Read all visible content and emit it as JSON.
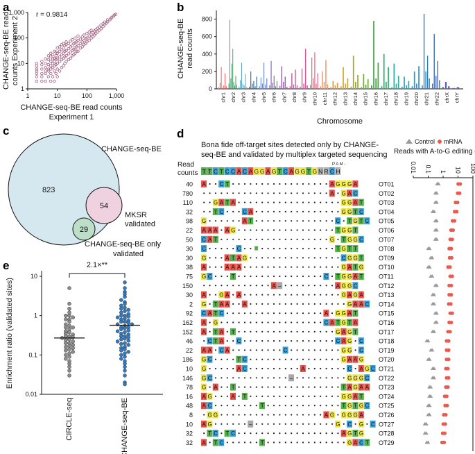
{
  "panel_labels": {
    "a": "a",
    "b": "b",
    "c": "c",
    "d": "d",
    "e": "e"
  },
  "chart_data": [
    {
      "id": "a",
      "type": "scatter",
      "scale": "log-log",
      "xlabel_line1": "CHANGE-seq-BE read counts",
      "xlabel_line2": "Experiment 1",
      "ylabel_line1": "CHANGE-seq-BE read",
      "ylabel_line2": "counts Experiment 2",
      "annotation": "r = 0.9814",
      "xlim": [
        1,
        1000
      ],
      "ylim": [
        1,
        1000
      ],
      "xticks": [
        "1",
        "10",
        "100",
        "1,000"
      ],
      "yticks": [
        "1",
        "10",
        "100",
        "1,000"
      ],
      "points": [
        [
          2,
          2
        ],
        [
          2,
          3
        ],
        [
          2,
          4
        ],
        [
          2,
          5
        ],
        [
          2,
          6
        ],
        [
          2,
          8
        ],
        [
          2,
          10
        ],
        [
          3,
          2
        ],
        [
          3,
          3
        ],
        [
          3,
          4
        ],
        [
          3,
          6
        ],
        [
          3,
          9
        ],
        [
          3,
          12
        ],
        [
          4,
          2
        ],
        [
          4,
          4
        ],
        [
          4,
          5
        ],
        [
          4,
          7
        ],
        [
          4,
          10
        ],
        [
          4,
          15
        ],
        [
          5,
          3
        ],
        [
          5,
          5
        ],
        [
          5,
          6
        ],
        [
          5,
          9
        ],
        [
          5,
          14
        ],
        [
          5,
          20
        ],
        [
          6,
          2
        ],
        [
          6,
          4
        ],
        [
          6,
          6
        ],
        [
          6,
          8
        ],
        [
          6,
          12
        ],
        [
          6,
          18
        ],
        [
          6,
          25
        ],
        [
          7,
          3
        ],
        [
          7,
          7
        ],
        [
          7,
          10
        ],
        [
          7,
          15
        ],
        [
          7,
          22
        ],
        [
          8,
          2
        ],
        [
          8,
          5
        ],
        [
          8,
          8
        ],
        [
          8,
          12
        ],
        [
          8,
          16
        ],
        [
          8,
          30
        ],
        [
          9,
          4
        ],
        [
          9,
          9
        ],
        [
          9,
          14
        ],
        [
          9,
          20
        ],
        [
          9,
          28
        ],
        [
          10,
          3
        ],
        [
          10,
          6
        ],
        [
          10,
          10
        ],
        [
          10,
          15
        ],
        [
          10,
          25
        ],
        [
          10,
          40
        ],
        [
          12,
          5
        ],
        [
          12,
          12
        ],
        [
          12,
          18
        ],
        [
          12,
          30
        ],
        [
          12,
          45
        ],
        [
          14,
          7
        ],
        [
          14,
          14
        ],
        [
          14,
          22
        ],
        [
          14,
          35
        ],
        [
          14,
          55
        ],
        [
          16,
          8
        ],
        [
          16,
          16
        ],
        [
          16,
          25
        ],
        [
          16,
          40
        ],
        [
          16,
          60
        ],
        [
          18,
          10
        ],
        [
          18,
          18
        ],
        [
          18,
          30
        ],
        [
          18,
          50
        ],
        [
          20,
          12
        ],
        [
          20,
          20
        ],
        [
          20,
          32
        ],
        [
          20,
          55
        ],
        [
          20,
          70
        ],
        [
          24,
          14
        ],
        [
          24,
          24
        ],
        [
          24,
          38
        ],
        [
          24,
          60
        ],
        [
          28,
          16
        ],
        [
          28,
          28
        ],
        [
          28,
          45
        ],
        [
          28,
          75
        ],
        [
          32,
          20
        ],
        [
          32,
          32
        ],
        [
          32,
          50
        ],
        [
          32,
          85
        ],
        [
          36,
          22
        ],
        [
          36,
          36
        ],
        [
          36,
          60
        ],
        [
          40,
          25
        ],
        [
          40,
          40
        ],
        [
          40,
          65
        ],
        [
          40,
          100
        ],
        [
          45,
          30
        ],
        [
          45,
          45
        ],
        [
          45,
          70
        ],
        [
          50,
          30
        ],
        [
          50,
          50
        ],
        [
          50,
          80
        ],
        [
          50,
          120
        ],
        [
          60,
          40
        ],
        [
          60,
          60
        ],
        [
          60,
          90
        ],
        [
          70,
          45
        ],
        [
          70,
          70
        ],
        [
          70,
          110
        ],
        [
          80,
          55
        ],
        [
          80,
          80
        ],
        [
          80,
          130
        ],
        [
          90,
          60
        ],
        [
          90,
          95
        ],
        [
          100,
          70
        ],
        [
          100,
          100
        ],
        [
          100,
          150
        ],
        [
          120,
          80
        ],
        [
          120,
          120
        ],
        [
          120,
          170
        ],
        [
          140,
          100
        ],
        [
          140,
          140
        ],
        [
          140,
          200
        ],
        [
          160,
          110
        ],
        [
          160,
          160
        ],
        [
          180,
          130
        ],
        [
          180,
          190
        ],
        [
          200,
          150
        ],
        [
          200,
          210
        ],
        [
          230,
          170
        ],
        [
          230,
          240
        ],
        [
          260,
          200
        ],
        [
          260,
          270
        ],
        [
          300,
          230
        ],
        [
          300,
          320
        ],
        [
          350,
          280
        ],
        [
          350,
          360
        ],
        [
          400,
          330
        ],
        [
          400,
          420
        ],
        [
          450,
          380
        ],
        [
          500,
          430
        ],
        [
          500,
          520
        ],
        [
          600,
          520
        ],
        [
          650,
          600
        ],
        [
          700,
          650
        ],
        [
          800,
          720
        ],
        [
          850,
          800
        ],
        [
          950,
          850
        ]
      ]
    },
    {
      "id": "b",
      "type": "bar",
      "ylabel_line1": "CHANGE-seq-BE",
      "ylabel_line2": "read counts",
      "xlabel": "Chromosome",
      "ylim": [
        0,
        900
      ],
      "yticks": [
        "0",
        "200",
        "400",
        "600",
        "800"
      ],
      "categories": [
        "chr1",
        "chr2",
        "chr3",
        "chr4",
        "chr5",
        "chr6",
        "chr7",
        "chr8",
        "chr9",
        "chr10",
        "chr11",
        "chr12",
        "chr13",
        "chr14",
        "chr15",
        "chr16",
        "chr17",
        "chr18",
        "chr19",
        "chr20",
        "chr21",
        "chr22",
        "chrX",
        "chrY"
      ],
      "colors": [
        "#f05a5a",
        "#2e9d57",
        "#4f9fc4",
        "#2c6fb0",
        "#6c86c4",
        "#7e63b3",
        "#9d5eb0",
        "#c456a8",
        "#e0509a",
        "#ef5a7a",
        "#f08f5a",
        "#e59a3a",
        "#d9a92e",
        "#a0aa2e",
        "#6fab3a",
        "#3da83f",
        "#2fb06e",
        "#26b1a0",
        "#24a9bf",
        "#2a96d2",
        "#2381c7",
        "#3c6cc0",
        "#5a62b8",
        "#7b5cb3"
      ],
      "bars": [
        [
          20,
          70,
          250,
          15,
          40,
          180,
          30
        ],
        [
          60,
          790,
          120,
          290,
          460,
          80,
          35,
          150,
          50
        ],
        [
          25,
          100,
          300,
          60,
          40,
          170,
          20
        ],
        [
          25,
          200,
          60,
          90,
          30,
          140
        ],
        [
          30,
          130,
          60,
          300,
          50,
          120
        ],
        [
          40,
          320,
          70,
          150,
          30,
          90
        ],
        [
          35,
          260,
          80,
          140,
          25
        ],
        [
          30,
          180,
          50,
          220,
          40
        ],
        [
          25,
          230,
          60,
          460,
          40
        ],
        [
          45,
          360,
          120,
          420,
          60,
          180
        ],
        [
          30,
          200,
          80,
          330,
          50
        ],
        [
          20,
          90,
          40,
          70
        ],
        [
          30,
          250,
          60,
          120
        ],
        [
          25,
          380,
          80,
          160
        ],
        [
          20,
          170,
          50,
          110
        ],
        [
          40,
          780,
          120,
          300
        ],
        [
          30,
          400,
          80,
          250
        ],
        [
          20,
          290,
          60,
          150
        ],
        [
          25,
          140,
          40,
          90
        ],
        [
          30,
          200,
          60,
          260
        ],
        [
          40,
          860,
          200,
          380,
          120
        ],
        [
          60,
          630,
          150,
          320,
          100
        ],
        [
          20,
          80,
          30
        ],
        [
          10,
          20
        ]
      ]
    },
    {
      "id": "c",
      "type": "venn",
      "sets": [
        {
          "label": "CHANGE-seq-BE",
          "count": "823"
        },
        {
          "label_line1": "MKSR",
          "label_line2": "validated",
          "count": "54"
        },
        {
          "label_line1": "CHANGE-seq-BE only",
          "label_line2": "validated",
          "count": "29"
        }
      ]
    },
    {
      "id": "d",
      "type": "table",
      "title_line1": "Bona fide off-target sites detected only by CHANGE-",
      "title_line2": "seq-BE and validated by multiplex targeted sequencing",
      "header_line1": "Read",
      "header_line2": "counts",
      "reference": "TTCTCCACAGGAGTCAGGTGNRCH",
      "pam_label": "P A M -",
      "rows": [
        {
          "count": "40",
          "id": "OT01",
          "seq": "A..CT.................AGGGA"
        },
        {
          "count": "780",
          "id": "OT02",
          "seq": "......................A.GAC"
        },
        {
          "count": "110",
          "id": "OT03",
          "seq": "..GATA..................GGAT"
        },
        {
          "count": "32",
          "id": "OT04",
          "seq": "..TC...CA...............GGTC"
        },
        {
          "count": "98",
          "id": "OT05",
          "seq": "G......AT..............C.TGTC"
        },
        {
          "count": "22",
          "id": "OT06",
          "seq": "AAA.AG.................TGGT"
        },
        {
          "count": "50",
          "id": "OT07",
          "seq": "CAT...................G.TGGC"
        },
        {
          "count": "30",
          "id": "OT08",
          "seq": "C.....C..g.............TGTT"
        },
        {
          "count": "30",
          "id": "OT09",
          "seq": "G...ATAG................CGGT"
        },
        {
          "count": "38",
          "id": "OT10",
          "seq": "A...AAA.................GATG"
        },
        {
          "count": "75",
          "id": "OT11",
          "seq": "GC...T...............C.TGGAT"
        },
        {
          "count": "150",
          "id": "OT12",
          "seq": "............A-.........AGGC"
        },
        {
          "count": "30",
          "id": "OT13",
          "seq": "A..GA.A.................GAGA"
        },
        {
          "count": "2",
          "id": "OT14",
          "seq": "G.TAA..A.................GAAC"
        },
        {
          "count": "92",
          "id": "OT15",
          "seq": "CATC.................A.GGAT"
        },
        {
          "count": "162",
          "id": "OT16",
          "seq": "A.G..................CATGTA"
        },
        {
          "count": "152",
          "id": "OT17",
          "seq": "A.TA.T.................GAGT"
        },
        {
          "count": "46",
          "id": "OT18",
          "seq": ".CTA..C................CAG.C"
        },
        {
          "count": "22",
          "id": "OT19",
          "seq": "AA.CA.........C.........GG.C"
        },
        {
          "count": "186",
          "id": "OT20",
          "seq": "GC....TC................GAAG"
        },
        {
          "count": "10",
          "id": "OT21",
          "seq": "G.....AC.........A.......C.AGC"
        },
        {
          "count": "146",
          "id": "OT22",
          "seq": "GC.............-.........GGGC"
        },
        {
          "count": "78",
          "id": "OT23",
          "seq": "G.A..T..................TAGAA"
        },
        {
          "count": "16",
          "id": "OT24",
          "seq": "AG...A.T................GGAT"
        },
        {
          "count": "48",
          "id": "OT25",
          "seq": "AC........T.............TGTGC"
        },
        {
          "count": "8",
          "id": "OT26",
          "seq": ".GG..................AG.GGGA"
        },
        {
          "count": "10",
          "id": "OT27",
          "seq": "AG......-..............G.C.G.C"
        },
        {
          "count": "32",
          "id": "OT28",
          "seq": ".TC.TC..................AGTG"
        },
        {
          "count": "32",
          "id": "OT29",
          "seq": "A.TC......T..............GACT"
        }
      ],
      "legend": {
        "control": "Control",
        "mrna": "mRNA"
      },
      "xlabel": "Reads with A-to-G editing (%)",
      "xticks": [
        "0.01",
        "0.1",
        "1",
        "10",
        "100"
      ],
      "editing_values": {
        "control": [
          0.4,
          0.3,
          0.3,
          0.2,
          0.3,
          0.3,
          0.3,
          0.1,
          0.15,
          0.1,
          0.15,
          0.3,
          0.2,
          0.2,
          0.3,
          0.3,
          0.2,
          0.08,
          0.15,
          0.1,
          0.2,
          0.2,
          0.12,
          0.12,
          0.1,
          0.1,
          0.06,
          0.06,
          0.08
        ],
        "mrna": [
          12,
          11,
          8,
          7,
          5,
          4,
          3.5,
          3,
          3.2,
          2.5,
          3.5,
          3,
          3,
          2.8,
          3.5,
          3,
          2.5,
          2,
          2,
          2,
          1.8,
          2,
          1.8,
          1.5,
          1.6,
          1.3,
          1.2,
          1.1,
          1
        ]
      }
    },
    {
      "id": "e",
      "type": "scatter",
      "subtype": "dot-strip",
      "ylabel": "Enrichment ratio (validated sites)",
      "categories": [
        "CIRCLE-seq",
        "CHANGE-seq-BE"
      ],
      "annotation": "2.1×**",
      "ylim": [
        0.01,
        10
      ],
      "yticks": [
        "0.01",
        "0.1",
        "1",
        "10"
      ],
      "medians": [
        0.27,
        0.57
      ],
      "series": [
        {
          "name": "CIRCLE-seq",
          "color": "#8d8d8d",
          "values": [
            5,
            2,
            1.5,
            1.2,
            1,
            1,
            0.9,
            0.8,
            0.8,
            0.7,
            0.6,
            0.55,
            0.5,
            0.5,
            0.45,
            0.4,
            0.38,
            0.35,
            0.33,
            0.3,
            0.3,
            0.28,
            0.27,
            0.25,
            0.24,
            0.22,
            0.2,
            0.2,
            0.18,
            0.17,
            0.16,
            0.15,
            0.14,
            0.13,
            0.12,
            0.11,
            0.1,
            0.09,
            0.08,
            0.07,
            0.06,
            0.05,
            0.04,
            0.03
          ]
        },
        {
          "name": "CHANGE-seq-BE",
          "color": "#2f7bc4",
          "values": [
            7,
            5,
            4,
            3.5,
            3,
            2.5,
            2.2,
            2,
            1.8,
            1.6,
            1.5,
            1.4,
            1.3,
            1.2,
            1.1,
            1,
            1,
            0.95,
            0.9,
            0.85,
            0.8,
            0.75,
            0.7,
            0.7,
            0.65,
            0.6,
            0.6,
            0.55,
            0.5,
            0.5,
            0.48,
            0.45,
            0.42,
            0.4,
            0.38,
            0.35,
            0.33,
            0.3,
            0.3,
            0.28,
            0.26,
            0.25,
            0.23,
            0.22,
            0.2,
            0.19,
            0.18,
            0.16,
            0.15,
            0.14,
            0.13,
            0.12,
            0.11,
            0.1,
            0.09,
            0.08,
            0.07,
            0.06,
            0.05,
            0.04,
            0.03,
            0.02,
            0.018
          ]
        }
      ]
    }
  ]
}
